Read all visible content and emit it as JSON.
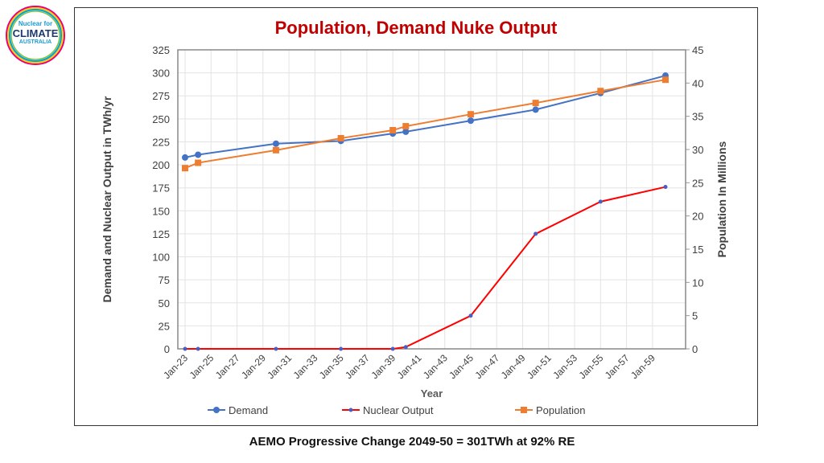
{
  "logo": {
    "line1": "Nuclear for",
    "line2": "CLIMATE",
    "line3": "AUSTRALIA"
  },
  "footer": "AEMO Progressive Change 2049-50 = 301TWh at 92% RE",
  "colors": {
    "demand": "#4472c4",
    "nuclear": "#ff0000",
    "population": "#ed7d31",
    "title": "#c00000"
  },
  "chart_data": {
    "type": "line",
    "title": "Population, Demand Nuke Output",
    "xlabel": "Year",
    "ylabel": "Demand  and Nuclear Output in TWh/yr",
    "y2label": "Population In Millions",
    "xticks": [
      "Jan-23",
      "Jan-25",
      "Jan-27",
      "Jan-29",
      "Jan-31",
      "Jan-33",
      "Jan-35",
      "Jan-37",
      "Jan-39",
      "Jan-41",
      "Jan-43",
      "Jan-45",
      "Jan-47",
      "Jan-49",
      "Jan-51",
      "Jan-53",
      "Jan-55",
      "Jan-57",
      "Jan-59"
    ],
    "xlim": [
      "2023-01",
      "2061-01"
    ],
    "ylim": [
      0,
      325
    ],
    "yticks": [
      0,
      25,
      50,
      75,
      100,
      125,
      150,
      175,
      200,
      225,
      250,
      275,
      300,
      325
    ],
    "y2lim": [
      0,
      45
    ],
    "y2ticks": [
      0,
      5,
      10,
      15,
      20,
      25,
      30,
      35,
      40,
      45
    ],
    "grid": true,
    "legend": "bottom",
    "x": [
      "2023-01",
      "2024-01",
      "2030-01",
      "2035-01",
      "2039-01",
      "2040-01",
      "2045-01",
      "2050-01",
      "2055-01",
      "2060-01"
    ],
    "series": [
      {
        "name": "Demand",
        "axis": "left",
        "marker": "circle",
        "values": [
          208,
          211,
          223,
          226,
          234,
          236,
          248,
          260,
          278,
          297
        ]
      },
      {
        "name": "Nuclear Output",
        "axis": "left",
        "marker": "dot",
        "values": [
          0,
          0,
          0,
          0,
          0,
          2,
          36,
          125,
          160,
          176
        ]
      },
      {
        "name": "Population",
        "axis": "right",
        "marker": "square",
        "values": [
          27.2,
          28.0,
          29.9,
          31.7,
          32.9,
          33.5,
          35.3,
          37.0,
          38.8,
          40.5
        ]
      }
    ]
  }
}
